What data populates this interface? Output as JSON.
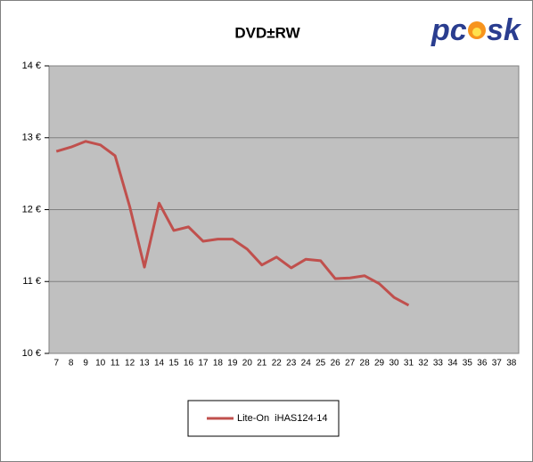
{
  "chart_data": {
    "type": "line",
    "title": "DVD±RW",
    "logo": [
      "pc",
      "sk"
    ],
    "categories": [
      "7",
      "8",
      "9",
      "10",
      "11",
      "12",
      "13",
      "14",
      "15",
      "16",
      "17",
      "18",
      "19",
      "20",
      "21",
      "22",
      "23",
      "24",
      "25",
      "26",
      "27",
      "28",
      "29",
      "30",
      "31",
      "32",
      "33",
      "34",
      "35",
      "36",
      "37",
      "38"
    ],
    "series": [
      {
        "name": "Lite-On  iHAS124-14",
        "color": "#c0504d",
        "values": [
          12.81,
          12.87,
          12.95,
          12.9,
          12.75,
          12.04,
          11.2,
          12.09,
          11.71,
          11.76,
          11.56,
          11.59,
          11.59,
          11.45,
          11.23,
          11.34,
          11.19,
          11.31,
          11.29,
          11.04,
          11.05,
          11.08,
          10.97,
          10.78,
          10.67,
          null,
          null,
          null,
          null,
          null,
          null,
          null
        ]
      }
    ],
    "ylim": [
      10,
      14
    ],
    "yticks": [
      {
        "value": 10,
        "label": "10 €"
      },
      {
        "value": 11,
        "label": "11 €"
      },
      {
        "value": 12,
        "label": "12 €"
      },
      {
        "value": 13,
        "label": "13 €"
      },
      {
        "value": 14,
        "label": "14 €"
      }
    ],
    "grid": true,
    "legend": "bottom"
  }
}
